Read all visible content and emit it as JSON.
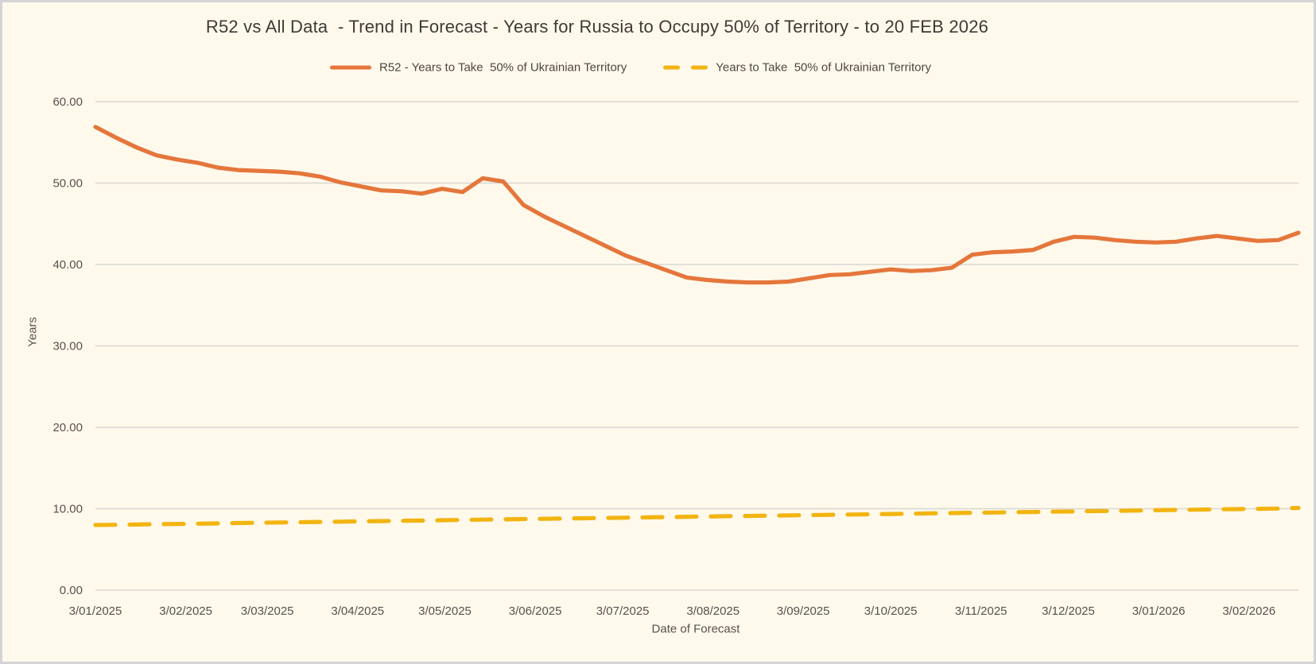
{
  "chart_title": "R52 vs All Data  - Trend in Forecast - Years for Russia to Occupy 50% of Territory - to 20 FEB 2026",
  "axes": {
    "y_title": "Years",
    "x_title": "Date of Forecast"
  },
  "colors": {
    "background": "#FFF9EC",
    "frame_border": "#D4D3D6",
    "gridline": "#D9D7D2",
    "tick_text": "#56534D",
    "title_text": "#3E3B35",
    "r52_orange": "#E5763B",
    "all_data_gold": "#F2B410"
  },
  "chart_data": {
    "type": "line",
    "title": "R52 vs All Data  - Trend in Forecast - Years for Russia to Occupy 50% of Territory - to 20 FEB 2026",
    "xlabel": "Date of Forecast",
    "ylabel": "Years",
    "ylim": [
      0,
      60
    ],
    "grid": "horizontal",
    "legend_position": "top",
    "n_points": 60,
    "x_tick_labels": [
      "3/01/2025",
      "3/02/2025",
      "3/03/2025",
      "3/04/2025",
      "3/05/2025",
      "3/06/2025",
      "3/07/2025",
      "3/08/2025",
      "3/09/2025",
      "3/10/2025",
      "3/11/2025",
      "3/12/2025",
      "3/01/2026",
      "3/02/2026"
    ],
    "x_tick_point_positions": [
      0,
      4.43,
      8.43,
      12.86,
      17.14,
      21.57,
      25.86,
      30.29,
      34.71,
      39.0,
      43.43,
      47.71,
      52.14,
      56.57
    ],
    "y_ticks": [
      {
        "value": 0,
        "label": "0.00"
      },
      {
        "value": 10,
        "label": "10.00"
      },
      {
        "value": 20,
        "label": "20.00"
      },
      {
        "value": 30,
        "label": "30.00"
      },
      {
        "value": 40,
        "label": "40.00"
      },
      {
        "value": 50,
        "label": "50.00"
      },
      {
        "value": 60,
        "label": "60.00"
      }
    ],
    "series": [
      {
        "name": "R52 - Years to Take  50% of Ukrainian Territory",
        "color": "#E5763B",
        "dash": "solid",
        "values": [
          56.9,
          55.6,
          54.4,
          53.4,
          52.9,
          52.5,
          51.9,
          51.6,
          51.5,
          51.4,
          51.2,
          50.8,
          50.1,
          49.6,
          49.1,
          49.0,
          48.7,
          49.3,
          48.9,
          50.6,
          50.2,
          47.3,
          45.9,
          44.7,
          43.5,
          42.3,
          41.1,
          40.2,
          39.3,
          38.4,
          38.1,
          37.9,
          37.8,
          37.8,
          37.9,
          38.3,
          38.7,
          38.8,
          39.1,
          39.4,
          39.2,
          39.3,
          39.6,
          41.2,
          41.5,
          41.6,
          41.8,
          42.8,
          43.4,
          43.3,
          43.0,
          42.8,
          42.7,
          42.8,
          43.2,
          43.5,
          43.2,
          42.9,
          43.0,
          43.9
        ]
      },
      {
        "name": "Years to Take  50% of Ukrainian Territory",
        "color": "#F2B410",
        "dash": "dashed",
        "values": [
          8.0,
          8.03,
          8.06,
          8.1,
          8.13,
          8.17,
          8.2,
          8.24,
          8.27,
          8.31,
          8.34,
          8.38,
          8.41,
          8.45,
          8.48,
          8.52,
          8.55,
          8.59,
          8.62,
          8.66,
          8.69,
          8.73,
          8.76,
          8.8,
          8.83,
          8.87,
          8.9,
          8.94,
          8.97,
          9.01,
          9.04,
          9.08,
          9.11,
          9.15,
          9.18,
          9.22,
          9.25,
          9.29,
          9.32,
          9.36,
          9.39,
          9.43,
          9.46,
          9.5,
          9.53,
          9.57,
          9.6,
          9.64,
          9.67,
          9.71,
          9.74,
          9.78,
          9.81,
          9.85,
          9.88,
          9.92,
          9.95,
          9.99,
          10.02,
          10.1
        ]
      }
    ]
  },
  "legend": [
    {
      "label": "R52 - Years to Take  50% of Ukrainian Territory"
    },
    {
      "label": "Years to Take  50% of Ukrainian Territory"
    }
  ]
}
